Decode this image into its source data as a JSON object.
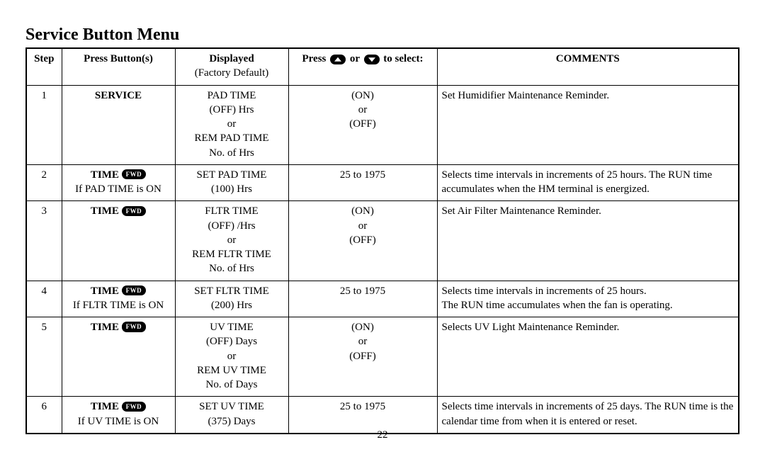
{
  "title": "Service Button Menu",
  "page_number": "22",
  "badge_label": "FWD",
  "colors": {
    "text": "#000000",
    "bg": "#ffffff",
    "badge_bg": "#000000",
    "badge_fg": "#ffffff"
  },
  "columns": {
    "step": "Step",
    "press": "Press Button(s)",
    "displayed": "Displayed",
    "displayed_sub": "(Factory Default)",
    "select_pre": "Press ",
    "select_mid": " or ",
    "select_post": " to select:",
    "comments": "COMMENTS"
  },
  "rows": [
    {
      "step": "1",
      "press_bold": "SERVICE",
      "press_badge": false,
      "press_sub": "",
      "displayed": "PAD TIME\n(OFF) Hrs\nor\nREM PAD TIME\nNo. of Hrs",
      "select": "(ON)\nor\n(OFF)",
      "comments": "Set Humidifier Maintenance Reminder."
    },
    {
      "step": "2",
      "press_bold": "TIME",
      "press_badge": true,
      "press_sub": "If PAD TIME is ON",
      "displayed": "SET PAD TIME\n(100) Hrs",
      "select": "25 to 1975",
      "comments": "Selects time intervals in increments of 25 hours. The RUN time accumulates when the HM terminal  is energized."
    },
    {
      "step": "3",
      "press_bold": "TIME",
      "press_badge": true,
      "press_sub": "",
      "displayed": "FLTR TIME\n(OFF) /Hrs\nor\nREM FLTR TIME\nNo. of Hrs",
      "select": "(ON)\nor\n(OFF)",
      "comments": "Set Air Filter Maintenance Reminder."
    },
    {
      "step": "4",
      "press_bold": "TIME",
      "press_badge": true,
      "press_sub": "If FLTR TIME is ON",
      "displayed": "SET FLTR TIME\n(200) Hrs",
      "select": "25 to 1975",
      "comments": "Selects time intervals in increments of 25 hours.\nThe RUN time accumulates when the fan is operating."
    },
    {
      "step": "5",
      "press_bold": "TIME",
      "press_badge": true,
      "press_sub": "",
      "displayed": "UV TIME\n(OFF) Days\nor\nREM UV TIME\nNo. of Days",
      "select": "(ON)\nor\n(OFF)",
      "comments": "Selects UV Light Maintenance Reminder."
    },
    {
      "step": "6",
      "press_bold": "TIME",
      "press_badge": true,
      "press_sub": "If UV TIME is ON",
      "displayed": "SET UV TIME\n(375) Days",
      "select": "25 to 1975",
      "comments": "Selects time intervals in increments of 25 days. The RUN time is the calendar time from when it is entered or reset."
    }
  ]
}
